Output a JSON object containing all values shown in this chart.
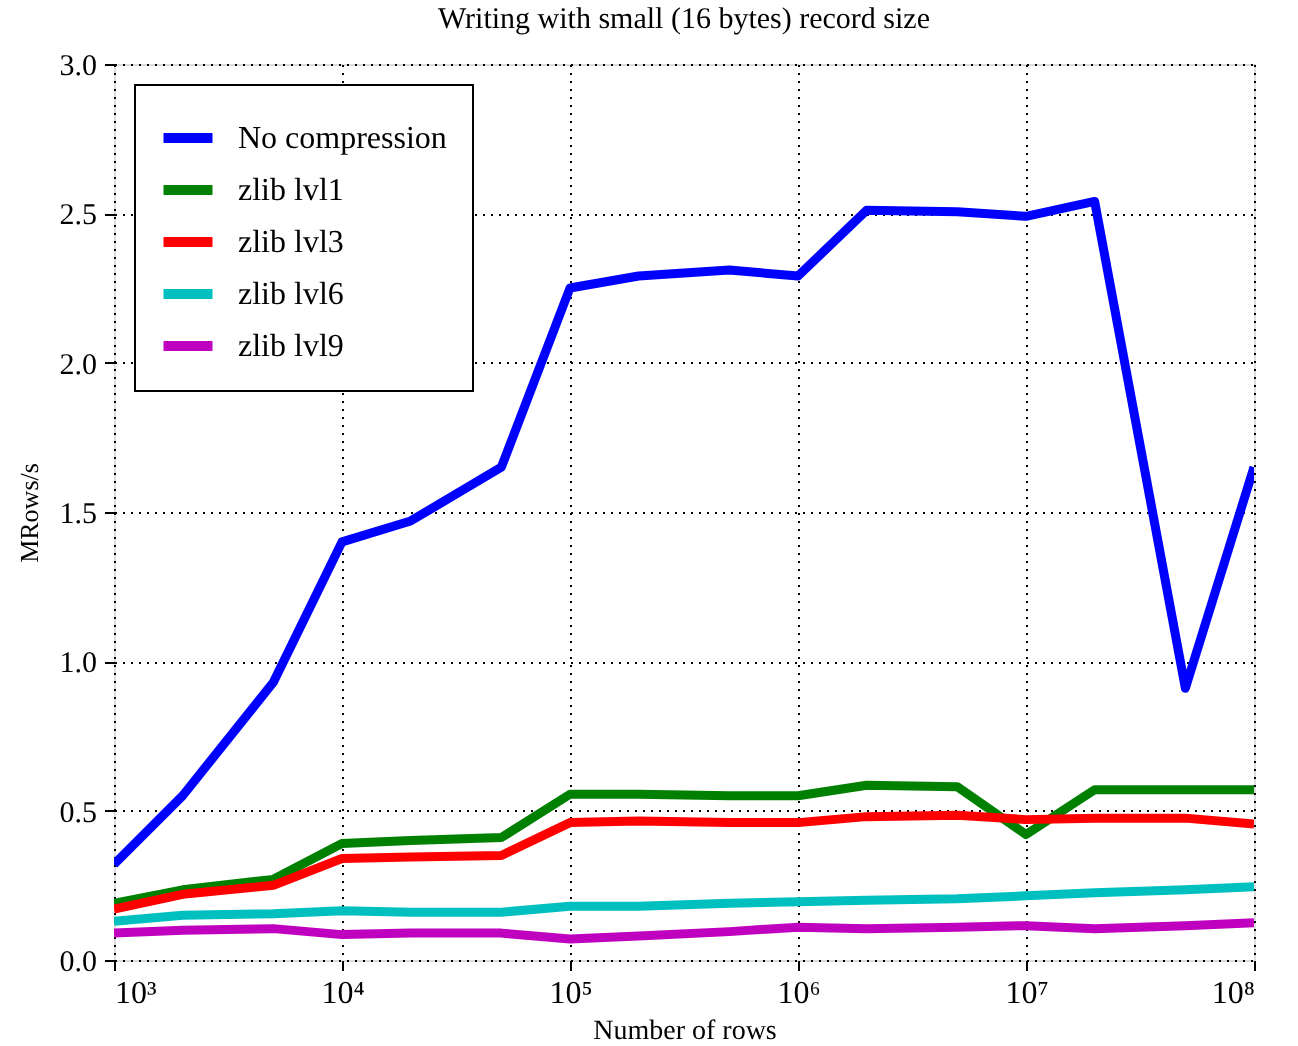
{
  "chart_data": {
    "type": "line",
    "title": "Writing with small (16 bytes) record size",
    "xlabel": "Number of rows",
    "ylabel": "MRows/s",
    "x": [
      1000,
      2000,
      5000,
      10000,
      20000,
      50000,
      100000,
      200000,
      500000,
      1000000,
      2000000,
      5000000,
      10000000,
      20000000,
      50000000,
      100000000
    ],
    "log": "x",
    "xlim": [
      1000,
      100000000
    ],
    "xticks": [
      {
        "value": 1000,
        "label": "10³"
      },
      {
        "value": 10000,
        "label": "10⁴"
      },
      {
        "value": 100000,
        "label": "10⁵"
      },
      {
        "value": 1000000,
        "label": "10⁶"
      },
      {
        "value": 10000000,
        "label": "10⁷"
      },
      {
        "value": 100000000,
        "label": "10⁸"
      }
    ],
    "ylim": [
      0,
      3
    ],
    "yticks": [
      {
        "value": 0,
        "label": "0.0"
      },
      {
        "value": 0.5,
        "label": "0.5"
      },
      {
        "value": 1,
        "label": "1.0"
      },
      {
        "value": 1.5,
        "label": "1.5"
      },
      {
        "value": 2,
        "label": "2.0"
      },
      {
        "value": 2.5,
        "label": "2.5"
      },
      {
        "value": 3,
        "label": "3.0"
      }
    ],
    "grid": true,
    "legend": "top left",
    "line_style": "solid",
    "marker": "none",
    "series": [
      {
        "name": "No compression",
        "color": "#0000ff",
        "values": [
          0.32,
          0.55,
          0.93,
          1.4,
          1.47,
          1.65,
          2.25,
          2.29,
          2.31,
          2.29,
          2.51,
          2.505,
          2.49,
          2.54,
          0.91,
          1.65
        ]
      },
      {
        "name": "zlib lvl1",
        "color": "#008000",
        "values": [
          0.19,
          0.235,
          0.27,
          0.39,
          0.4,
          0.41,
          0.555,
          0.555,
          0.55,
          0.55,
          0.585,
          0.58,
          0.42,
          0.57,
          0.57,
          0.57
        ]
      },
      {
        "name": "zlib lvl3",
        "color": "#ff0000",
        "values": [
          0.17,
          0.22,
          0.25,
          0.34,
          0.345,
          0.35,
          0.46,
          0.465,
          0.46,
          0.46,
          0.48,
          0.485,
          0.47,
          0.475,
          0.475,
          0.455
        ]
      },
      {
        "name": "zlib lvl6",
        "color": "#00bfbf",
        "values": [
          0.13,
          0.15,
          0.155,
          0.165,
          0.16,
          0.16,
          0.18,
          0.18,
          0.19,
          0.195,
          0.2,
          0.205,
          0.215,
          0.225,
          0.235,
          0.245
        ]
      },
      {
        "name": "zlib lvl9",
        "color": "#bf00bf",
        "values": [
          0.09,
          0.1,
          0.105,
          0.085,
          0.09,
          0.09,
          0.07,
          0.08,
          0.095,
          0.11,
          0.105,
          0.11,
          0.115,
          0.105,
          0.115,
          0.125
        ]
      }
    ]
  }
}
